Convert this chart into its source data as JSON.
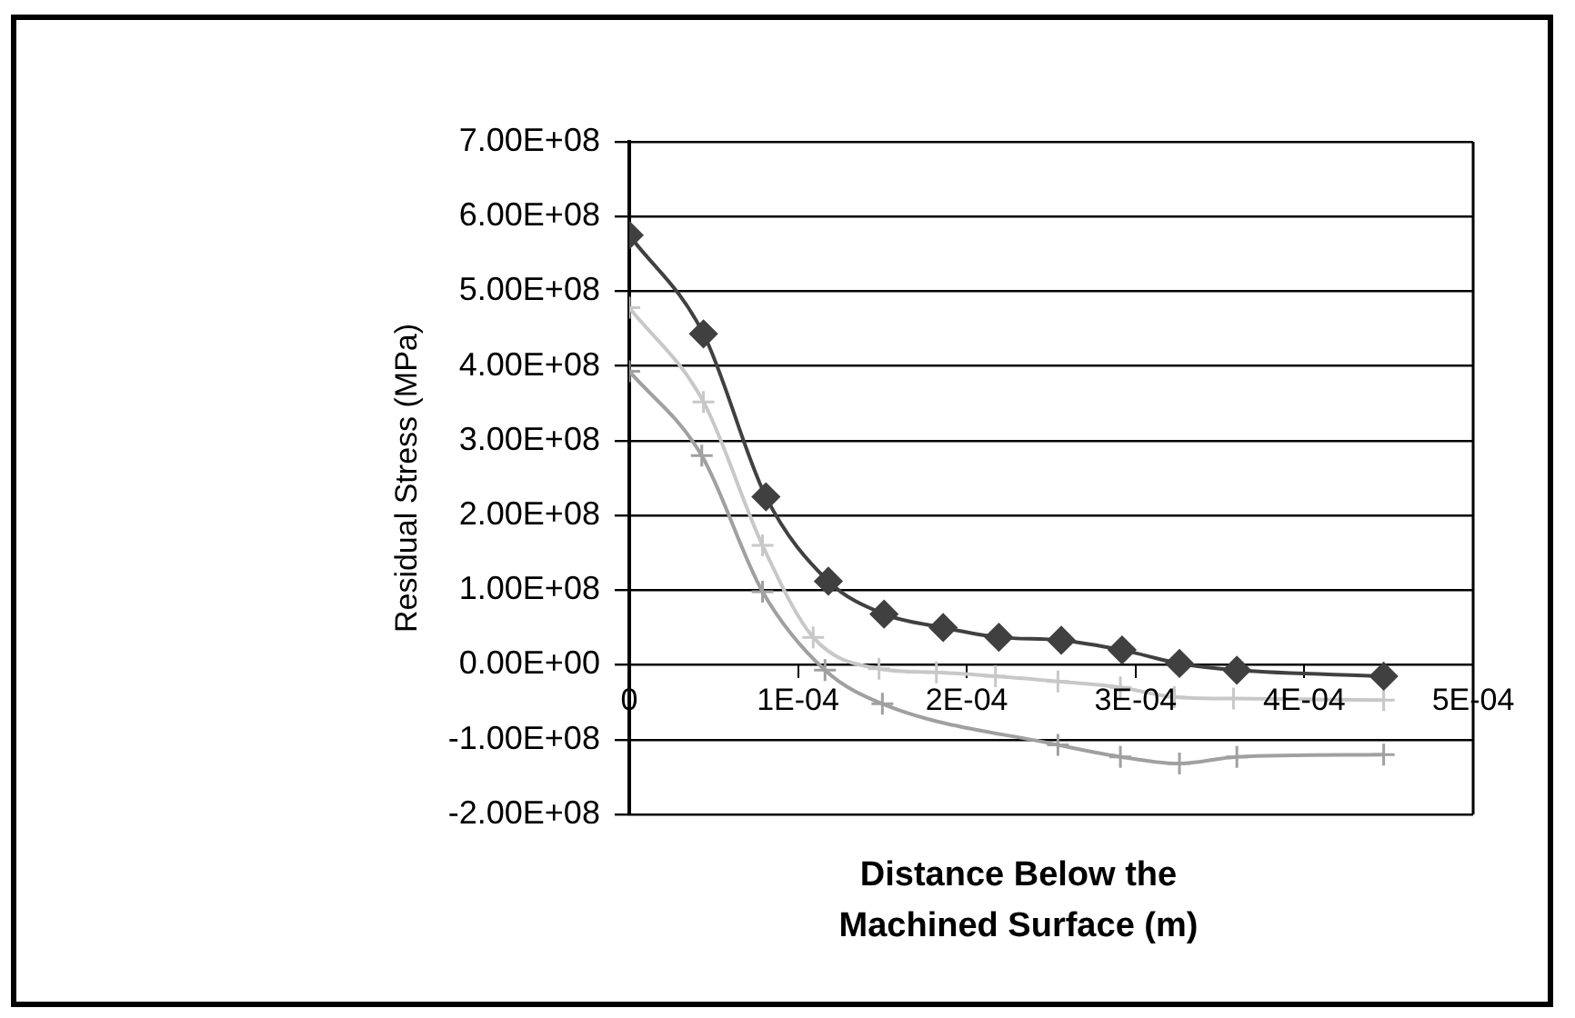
{
  "chart_data": {
    "type": "line",
    "xlabel": "Distance Below the Machined Surface (m)",
    "ylabel": "Residual Stress (MPa)",
    "xlim": [
      0,
      0.0005
    ],
    "xticks": [
      {
        "value": 0,
        "label": "0"
      },
      {
        "value": 0.0001,
        "label": "1E-04"
      },
      {
        "value": 0.0002,
        "label": "2E-04"
      },
      {
        "value": 0.0003,
        "label": "3E-04"
      },
      {
        "value": 0.0004,
        "label": "4E-04"
      },
      {
        "value": 0.0005,
        "label": "5E-04"
      }
    ],
    "ylim": [
      -200000000,
      700000000
    ],
    "yticks": [
      {
        "value": -200000000,
        "label": "-2.00E+08"
      },
      {
        "value": -100000000,
        "label": "-1.00E+08"
      },
      {
        "value": 0,
        "label": "0.00E+00"
      },
      {
        "value": 100000000,
        "label": "1.00E+08"
      },
      {
        "value": 200000000,
        "label": "2.00E+08"
      },
      {
        "value": 300000000,
        "label": "3.00E+08"
      },
      {
        "value": 400000000,
        "label": "4.00E+08"
      },
      {
        "value": 500000000,
        "label": "5.00E+08"
      },
      {
        "value": 600000000,
        "label": "6.00E+08"
      },
      {
        "value": 700000000,
        "label": "7.00E+08"
      }
    ],
    "grid": "y",
    "legend": false,
    "series": [
      {
        "color": "#404040",
        "marker": "diamond",
        "x": [
          0,
          4.4e-05,
          8.1e-05,
          0.000118,
          0.000151,
          0.000186,
          0.000219,
          0.000256,
          0.000292,
          0.000326,
          0.00036,
          0.000447
        ],
        "values": [
          575000000,
          443000000,
          225000000,
          112000000,
          68000000,
          50000000,
          37000000,
          33000000,
          20000000,
          2000000,
          -7000000,
          -15000000
        ]
      },
      {
        "color": "#c8c8c8",
        "marker": "cross",
        "x": [
          0,
          4.4e-05,
          7.9e-05,
          0.000109,
          0.000148,
          0.000182,
          0.000217,
          0.000254,
          0.000291,
          0.000323,
          0.000358,
          0.000447
        ],
        "values": [
          478000000,
          352000000,
          160000000,
          37000000,
          -5000000,
          -10000000,
          -15000000,
          -22000000,
          -30000000,
          -43000000,
          -45000000,
          -47000000
        ]
      },
      {
        "color": "#a0a0a0",
        "marker": "cross",
        "x": [
          0,
          4.3e-05,
          7.9e-05,
          0.000116,
          0.00015,
          0.000254,
          0.000291,
          0.000326,
          0.00036,
          0.000447
        ],
        "values": [
          393000000,
          280000000,
          98000000,
          -7000000,
          -52000000,
          -107000000,
          -123000000,
          -132000000,
          -123000000,
          -120000000
        ]
      }
    ]
  }
}
